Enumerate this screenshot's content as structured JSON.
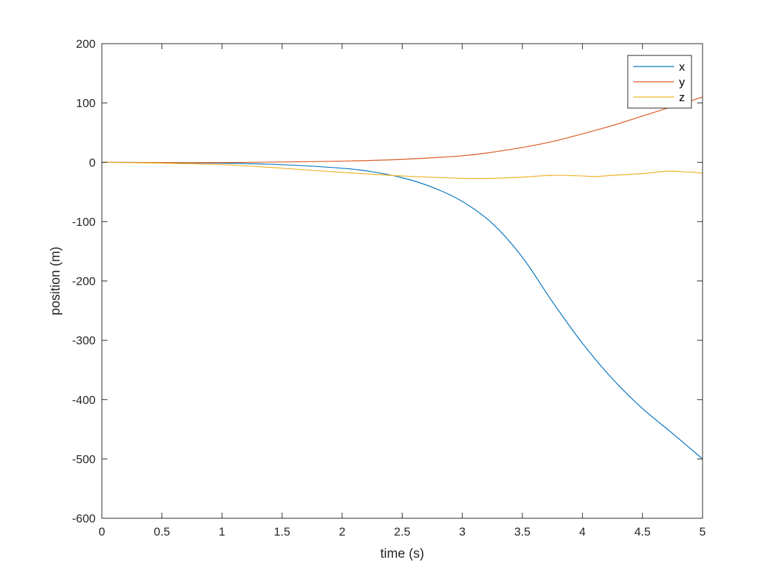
{
  "chart_data": {
    "type": "line",
    "title": "",
    "xlabel": "time (s)",
    "ylabel": "position (m)",
    "xlim": [
      0,
      5
    ],
    "ylim": [
      -600,
      200
    ],
    "grid": false,
    "box": true,
    "legend_position": "top-right",
    "x_ticks": [
      0,
      0.5,
      1,
      1.5,
      2,
      2.5,
      3,
      3.5,
      4,
      4.5,
      5
    ],
    "x_tick_labels": [
      "0",
      "0.5",
      "1",
      "1.5",
      "2",
      "2.5",
      "3",
      "3.5",
      "4",
      "4.5",
      "5"
    ],
    "y_ticks": [
      200,
      100,
      0,
      -100,
      -200,
      -300,
      -400,
      -500,
      -600
    ],
    "y_tick_labels": [
      "200",
      "100",
      "0",
      "-100",
      "-200",
      "-300",
      "-400",
      "-500",
      "-600"
    ],
    "series": [
      {
        "name": "x",
        "color": "#0072BD",
        "x": [
          0,
          0.5,
          1,
          1.5,
          2,
          2.25,
          2.5,
          2.75,
          3,
          3.25,
          3.5,
          3.75,
          4,
          4.25,
          4.5,
          4.75,
          5
        ],
        "y": [
          0,
          -0.5,
          -1.5,
          -4,
          -10,
          -16,
          -26,
          -42,
          -66,
          -103,
          -160,
          -235,
          -305,
          -365,
          -415,
          -457,
          -500
        ]
      },
      {
        "name": "y",
        "color": "#D95319",
        "x": [
          0,
          0.5,
          1,
          1.5,
          2,
          2.5,
          3,
          3.25,
          3.5,
          3.75,
          4,
          4.25,
          4.5,
          4.75,
          5
        ],
        "y": [
          0,
          -0.5,
          -0.5,
          0.5,
          2,
          5,
          11,
          17,
          25,
          35,
          48,
          62,
          78,
          94,
          110
        ]
      },
      {
        "name": "z",
        "color": "#EDB120",
        "x": [
          0,
          0.5,
          1,
          1.5,
          2,
          2.5,
          3,
          3.25,
          3.5,
          3.75,
          4,
          4.1,
          4.25,
          4.5,
          4.7,
          4.85,
          5
        ],
        "y": [
          0,
          -1.5,
          -4,
          -10,
          -17,
          -23,
          -27,
          -27,
          -25,
          -22,
          -23,
          -24,
          -22,
          -19,
          -15,
          -16,
          -18
        ]
      }
    ]
  }
}
